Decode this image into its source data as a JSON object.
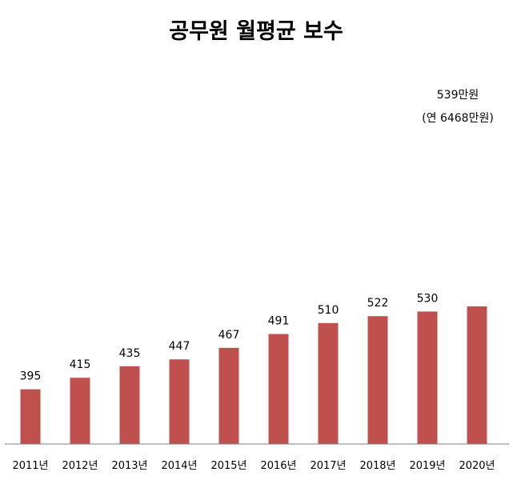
{
  "chart_data": {
    "type": "bar",
    "title": "공무원 월평균 보수",
    "categories": [
      "2011년",
      "2012년",
      "2013년",
      "2014년",
      "2015년",
      "2016년",
      "2017년",
      "2018년",
      "2019년",
      "2020년"
    ],
    "values": [
      395,
      415,
      435,
      447,
      467,
      491,
      510,
      522,
      530,
      539
    ],
    "data_labels": [
      "395",
      "415",
      "435",
      "447",
      "467",
      "491",
      "510",
      "522",
      "530",
      "539만원"
    ],
    "annotation": "(연 6468만원)",
    "bar_color": "#c0504d",
    "axis_color": "#808080",
    "ylim": [
      0,
      560
    ],
    "grid": false,
    "legend": "none"
  }
}
